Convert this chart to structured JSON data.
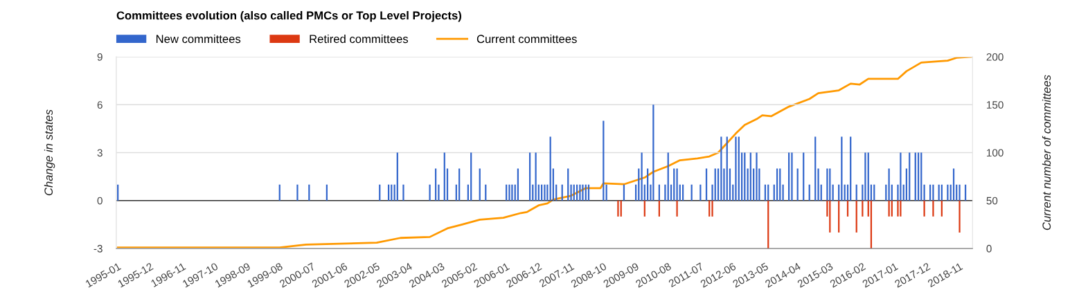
{
  "chart_data": {
    "type": "bar",
    "title": "Committees evolution (also called PMCs or Top Level Projects)",
    "ylabel": "Change in states",
    "y2label": "Current number of committees",
    "xlim": [
      "1994-12-16",
      "2019-03-16"
    ],
    "xticks": [
      "1995-01",
      "1995-12",
      "1996-11",
      "1997-10",
      "1998-09",
      "1999-08",
      "2000-07",
      "2001-06",
      "2002-05",
      "2003-04",
      "2004-03",
      "2005-02",
      "2006-01",
      "2006-12",
      "2007-11",
      "2008-10",
      "2009-09",
      "2010-08",
      "2011-07",
      "2012-06",
      "2013-05",
      "2014-04",
      "2015-03",
      "2016-02",
      "2017-01",
      "2017-12",
      "2018-11"
    ],
    "ylim": [
      -3,
      9
    ],
    "yticks": [
      -3,
      0,
      3,
      6,
      9
    ],
    "y2lim": [
      0,
      200
    ],
    "y2ticks": [
      0,
      50,
      100,
      150,
      200
    ],
    "grid": "y",
    "legend": "top left",
    "ref_lines": [
      {
        "axis": "y",
        "value": 0,
        "color": "#333333"
      }
    ],
    "series": [
      {
        "name": "New committees",
        "color": "#3366cc",
        "x": [
          "1995-01",
          "1999-08",
          "2000-02",
          "2000-06",
          "2000-12",
          "2002-06",
          "2002-09",
          "2002-10",
          "2002-11",
          "2002-12",
          "2003-02",
          "2003-11",
          "2004-01",
          "2004-02",
          "2004-04",
          "2004-05",
          "2004-08",
          "2004-09",
          "2004-12",
          "2005-01",
          "2005-04",
          "2005-06",
          "2006-01",
          "2006-02",
          "2006-03",
          "2006-04",
          "2006-05",
          "2006-09",
          "2006-10",
          "2006-11",
          "2006-12",
          "2007-01",
          "2007-02",
          "2007-03",
          "2007-04",
          "2007-05",
          "2007-06",
          "2007-08",
          "2007-10",
          "2007-11",
          "2007-12",
          "2008-01",
          "2008-02",
          "2008-03",
          "2008-04",
          "2008-05",
          "2008-10",
          "2008-11",
          "2009-05",
          "2009-09",
          "2009-10",
          "2009-11",
          "2009-12",
          "2010-01",
          "2010-02",
          "2010-03",
          "2010-05",
          "2010-07",
          "2010-08",
          "2010-09",
          "2010-10",
          "2010-11",
          "2010-12",
          "2011-01",
          "2011-04",
          "2011-07",
          "2011-09",
          "2011-11",
          "2011-12",
          "2012-01",
          "2012-02",
          "2012-03",
          "2012-04",
          "2012-05",
          "2012-06",
          "2012-07",
          "2012-08",
          "2012-09",
          "2012-10",
          "2012-11",
          "2012-12",
          "2013-01",
          "2013-02",
          "2013-03",
          "2013-05",
          "2013-06",
          "2013-08",
          "2013-09",
          "2013-10",
          "2013-11",
          "2014-01",
          "2014-02",
          "2014-04",
          "2014-06",
          "2014-08",
          "2014-10",
          "2014-11",
          "2014-12",
          "2015-02",
          "2015-03",
          "2015-04",
          "2015-06",
          "2015-07",
          "2015-08",
          "2015-09",
          "2015-10",
          "2015-12",
          "2016-02",
          "2016-03",
          "2016-04",
          "2016-05",
          "2016-06",
          "2016-10",
          "2016-11",
          "2016-12",
          "2017-02",
          "2017-03",
          "2017-04",
          "2017-05",
          "2017-06",
          "2017-08",
          "2017-09",
          "2017-10",
          "2017-11",
          "2018-01",
          "2018-02",
          "2018-04",
          "2018-05",
          "2018-07",
          "2018-08",
          "2018-09",
          "2018-10",
          "2018-11",
          "2019-01"
        ],
        "values": [
          1,
          1,
          1,
          1,
          1,
          1,
          1,
          1,
          1,
          3,
          1,
          1,
          2,
          1,
          3,
          2,
          1,
          2,
          1,
          3,
          2,
          1,
          1,
          1,
          1,
          1,
          2,
          3,
          1,
          3,
          1,
          1,
          1,
          1,
          4,
          2,
          1,
          1,
          2,
          1,
          1,
          1,
          1,
          1,
          1,
          1,
          5,
          1,
          1,
          1,
          2,
          3,
          1,
          2,
          1,
          6,
          1,
          1,
          3,
          1,
          2,
          2,
          1,
          1,
          1,
          1,
          2,
          1,
          2,
          2,
          4,
          2,
          4,
          2,
          1,
          4,
          4,
          3,
          3,
          2,
          3,
          2,
          3,
          2,
          1,
          1,
          1,
          2,
          2,
          1,
          3,
          3,
          2,
          3,
          1,
          4,
          2,
          1,
          2,
          2,
          1,
          1,
          4,
          1,
          1,
          4,
          1,
          1,
          3,
          3,
          1,
          1,
          1,
          2,
          1,
          1,
          3,
          1,
          2,
          3,
          3,
          3,
          3,
          1,
          1,
          1,
          1,
          1,
          1,
          1,
          2,
          1,
          1,
          1
        ]
      },
      {
        "name": "Retired committees",
        "color": "#dc3912",
        "x": [
          "2009-03",
          "2009-04",
          "2009-12",
          "2010-05",
          "2010-11",
          "2011-10",
          "2011-11",
          "2013-06",
          "2015-02",
          "2015-03",
          "2015-06",
          "2015-09",
          "2015-12",
          "2016-02",
          "2016-04",
          "2016-05",
          "2016-11",
          "2016-12",
          "2017-02",
          "2017-03",
          "2017-11",
          "2018-02",
          "2018-05",
          "2018-11"
        ],
        "values": [
          -1,
          -1,
          -1,
          -1,
          -1,
          -1,
          -1,
          -3,
          -1,
          -2,
          -2,
          -1,
          -2,
          -1,
          -1,
          -3,
          -1,
          -1,
          -1,
          -1,
          -1,
          -1,
          -1,
          -2
        ]
      },
      {
        "name": "Current committees",
        "type": "line",
        "axis": "y2",
        "color": "#ff9900",
        "x": [
          "1995-01",
          "1999-08",
          "2000-05",
          "2002-05",
          "2003-01",
          "2003-11",
          "2004-05",
          "2004-10",
          "2005-04",
          "2005-12",
          "2006-06",
          "2006-08",
          "2006-12",
          "2007-03",
          "2007-05",
          "2007-11",
          "2008-04",
          "2008-09",
          "2008-10",
          "2009-05",
          "2009-12",
          "2010-03",
          "2010-08",
          "2010-12",
          "2011-06",
          "2011-10",
          "2012-01",
          "2012-04",
          "2012-07",
          "2012-10",
          "2013-02",
          "2013-04",
          "2013-07",
          "2014-01",
          "2014-08",
          "2014-11",
          "2015-06",
          "2015-10",
          "2016-01",
          "2016-04",
          "2017-02",
          "2017-05",
          "2017-10",
          "2018-07",
          "2018-10",
          "2019-03"
        ],
        "values": [
          1,
          1,
          4,
          6,
          11,
          12,
          21,
          25,
          30,
          32,
          37,
          38,
          45,
          47,
          51,
          55,
          63,
          63,
          68,
          67,
          74,
          80,
          86,
          92,
          94,
          96,
          100,
          110,
          120,
          129,
          135,
          139,
          138,
          148,
          156,
          162,
          165,
          172,
          171,
          177,
          177,
          185,
          194,
          196,
          199,
          200
        ]
      }
    ]
  }
}
